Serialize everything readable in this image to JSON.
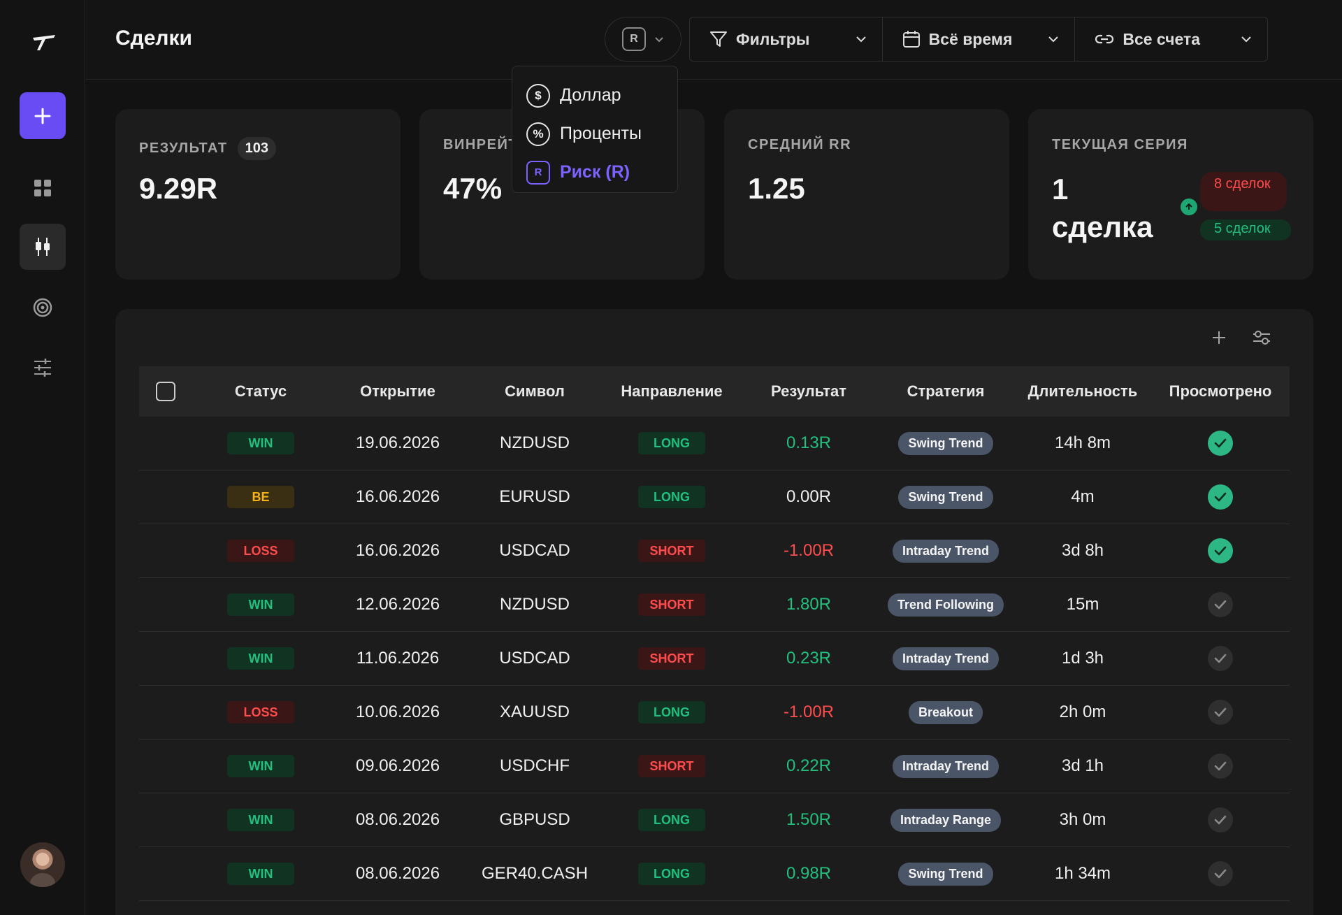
{
  "header": {
    "title": "Сделки",
    "unit_badge": "R",
    "filters_label": "Фильтры",
    "period_label": "Всё время",
    "accounts_label": "Все счета"
  },
  "unit_menu": {
    "items": [
      {
        "icon": "$",
        "label": "Доллар"
      },
      {
        "icon": "%",
        "label": "Проценты"
      },
      {
        "icon": "R",
        "label": "Риск (R)"
      }
    ],
    "selected": "Риск (R)"
  },
  "stats": {
    "result": {
      "label": "РЕЗУЛЬТАТ",
      "count": "103",
      "value": "9.29R"
    },
    "winrate": {
      "label": "ВИНРЕЙТ",
      "value": "47%"
    },
    "avg_rr": {
      "label": "СРЕДНИЙ RR",
      "value": "1.25"
    },
    "streak": {
      "label": "ТЕКУЩАЯ СЕРИЯ",
      "value": "1 сделка",
      "loss_streak": "8 сделок",
      "win_streak": "5 сделок"
    }
  },
  "table": {
    "columns": [
      "Статус",
      "Открытие",
      "Символ",
      "Направление",
      "Результат",
      "Стратегия",
      "Длительность",
      "Просмотрено"
    ],
    "rows": [
      {
        "status": "WIN",
        "date": "19.06.2026",
        "symbol": "NZDUSD",
        "direction": "LONG",
        "result": "0.13R",
        "strategy": "Swing Trend",
        "duration": "14h 8m",
        "reviewed": true
      },
      {
        "status": "BE",
        "date": "16.06.2026",
        "symbol": "EURUSD",
        "direction": "LONG",
        "result": "0.00R",
        "strategy": "Swing Trend",
        "duration": "4m",
        "reviewed": true
      },
      {
        "status": "LOSS",
        "date": "16.06.2026",
        "symbol": "USDCAD",
        "direction": "SHORT",
        "result": "-1.00R",
        "strategy": "Intraday Trend",
        "duration": "3d 8h",
        "reviewed": true
      },
      {
        "status": "WIN",
        "date": "12.06.2026",
        "symbol": "NZDUSD",
        "direction": "SHORT",
        "result": "1.80R",
        "strategy": "Trend Following",
        "duration": "15m",
        "reviewed": false
      },
      {
        "status": "WIN",
        "date": "11.06.2026",
        "symbol": "USDCAD",
        "direction": "SHORT",
        "result": "0.23R",
        "strategy": "Intraday Trend",
        "duration": "1d 3h",
        "reviewed": false
      },
      {
        "status": "LOSS",
        "date": "10.06.2026",
        "symbol": "XAUUSD",
        "direction": "LONG",
        "result": "-1.00R",
        "strategy": "Breakout",
        "duration": "2h 0m",
        "reviewed": false
      },
      {
        "status": "WIN",
        "date": "09.06.2026",
        "symbol": "USDCHF",
        "direction": "SHORT",
        "result": "0.22R",
        "strategy": "Intraday Trend",
        "duration": "3d 1h",
        "reviewed": false
      },
      {
        "status": "WIN",
        "date": "08.06.2026",
        "symbol": "GBPUSD",
        "direction": "LONG",
        "result": "1.50R",
        "strategy": "Intraday Range",
        "duration": "3h 0m",
        "reviewed": false
      },
      {
        "status": "WIN",
        "date": "08.06.2026",
        "symbol": "GER40.CASH",
        "direction": "LONG",
        "result": "0.98R",
        "strategy": "Swing Trend",
        "duration": "1h 34m",
        "reviewed": false
      }
    ]
  },
  "colors": {
    "accent": "#6a4cf5",
    "win": "#22c07e",
    "loss": "#ff4c4c",
    "be": "#f2b318"
  }
}
